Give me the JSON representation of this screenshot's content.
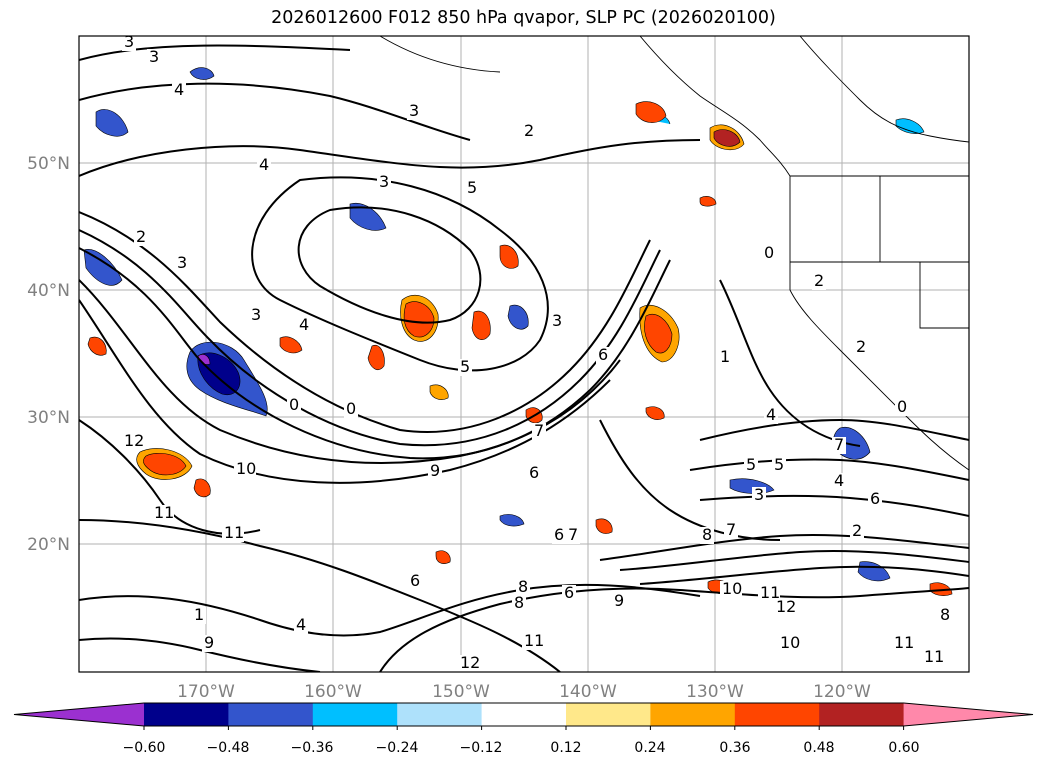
{
  "title": "2026012600 F012 850 hPa qvapor, SLP PC (2026020100)",
  "latitude_labels": [
    "50°N",
    "40°N",
    "30°N",
    "20°N"
  ],
  "longitude_labels": [
    "170°W",
    "160°W",
    "150°W",
    "140°W",
    "130°W",
    "120°W"
  ],
  "colorbar": {
    "tick_labels": [
      "−0.60",
      "−0.48",
      "−0.36",
      "−0.24",
      "−0.12",
      "0.12",
      "0.24",
      "0.36",
      "0.48",
      "0.60"
    ],
    "colors": [
      "#9b30d0",
      "#00008b",
      "#3355cc",
      "#00bfff",
      "#aee1fb",
      "#ffffff",
      "#ffe88a",
      "#ffa500",
      "#ff4500",
      "#b22222",
      "#ff88aa"
    ]
  },
  "contour_labels": [
    "3",
    "3",
    "4",
    "3",
    "2",
    "4",
    "3",
    "5",
    "2",
    "3",
    "3",
    "4",
    "0",
    "0",
    "3",
    "5",
    "6",
    "12",
    "10",
    "11",
    "11",
    "9",
    "7",
    "6",
    "6",
    "8",
    "6",
    "7",
    "8",
    "9",
    "10",
    "11",
    "12",
    "11",
    "12",
    "8",
    "7",
    "5",
    "4",
    "4",
    "2",
    "0",
    "1",
    "2",
    "0",
    "6",
    "11",
    "11",
    "9",
    "10",
    "8",
    "6",
    "4",
    "1",
    "5",
    "7",
    "3",
    "2"
  ]
}
